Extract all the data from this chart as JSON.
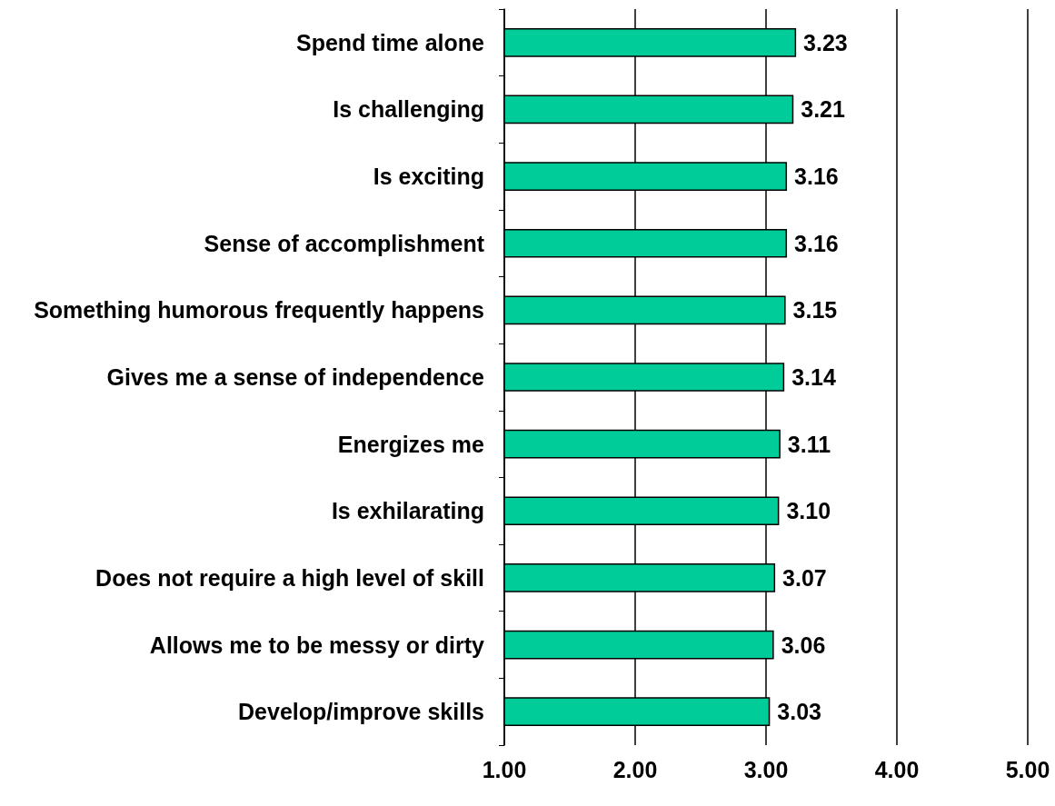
{
  "chart_data": {
    "type": "bar",
    "orientation": "horizontal",
    "categories": [
      "Spend time alone",
      "Is challenging",
      "Is exciting",
      "Sense of accomplishment",
      "Something humorous frequently happens",
      "Gives me a sense of independence",
      "Energizes me",
      "Is exhilarating",
      "Does not require a high level of skill",
      "Allows me to be messy or dirty",
      "Develop/improve skills"
    ],
    "values": [
      3.23,
      3.21,
      3.16,
      3.16,
      3.15,
      3.14,
      3.11,
      3.1,
      3.07,
      3.06,
      3.03
    ],
    "value_labels": [
      "3.23",
      "3.21",
      "3.16",
      "3.16",
      "3.15",
      "3.14",
      "3.11",
      "3.10",
      "3.07",
      "3.06",
      "3.03"
    ],
    "color": "#00cc99",
    "xlim": [
      1,
      5
    ],
    "xticks": [
      {
        "value": 1,
        "label": "1.00"
      },
      {
        "value": 2,
        "label": "2.00"
      },
      {
        "value": 3,
        "label": "3.00"
      },
      {
        "value": 4,
        "label": "4.00"
      },
      {
        "value": 5,
        "label": "5.00"
      }
    ],
    "grid": "x"
  }
}
